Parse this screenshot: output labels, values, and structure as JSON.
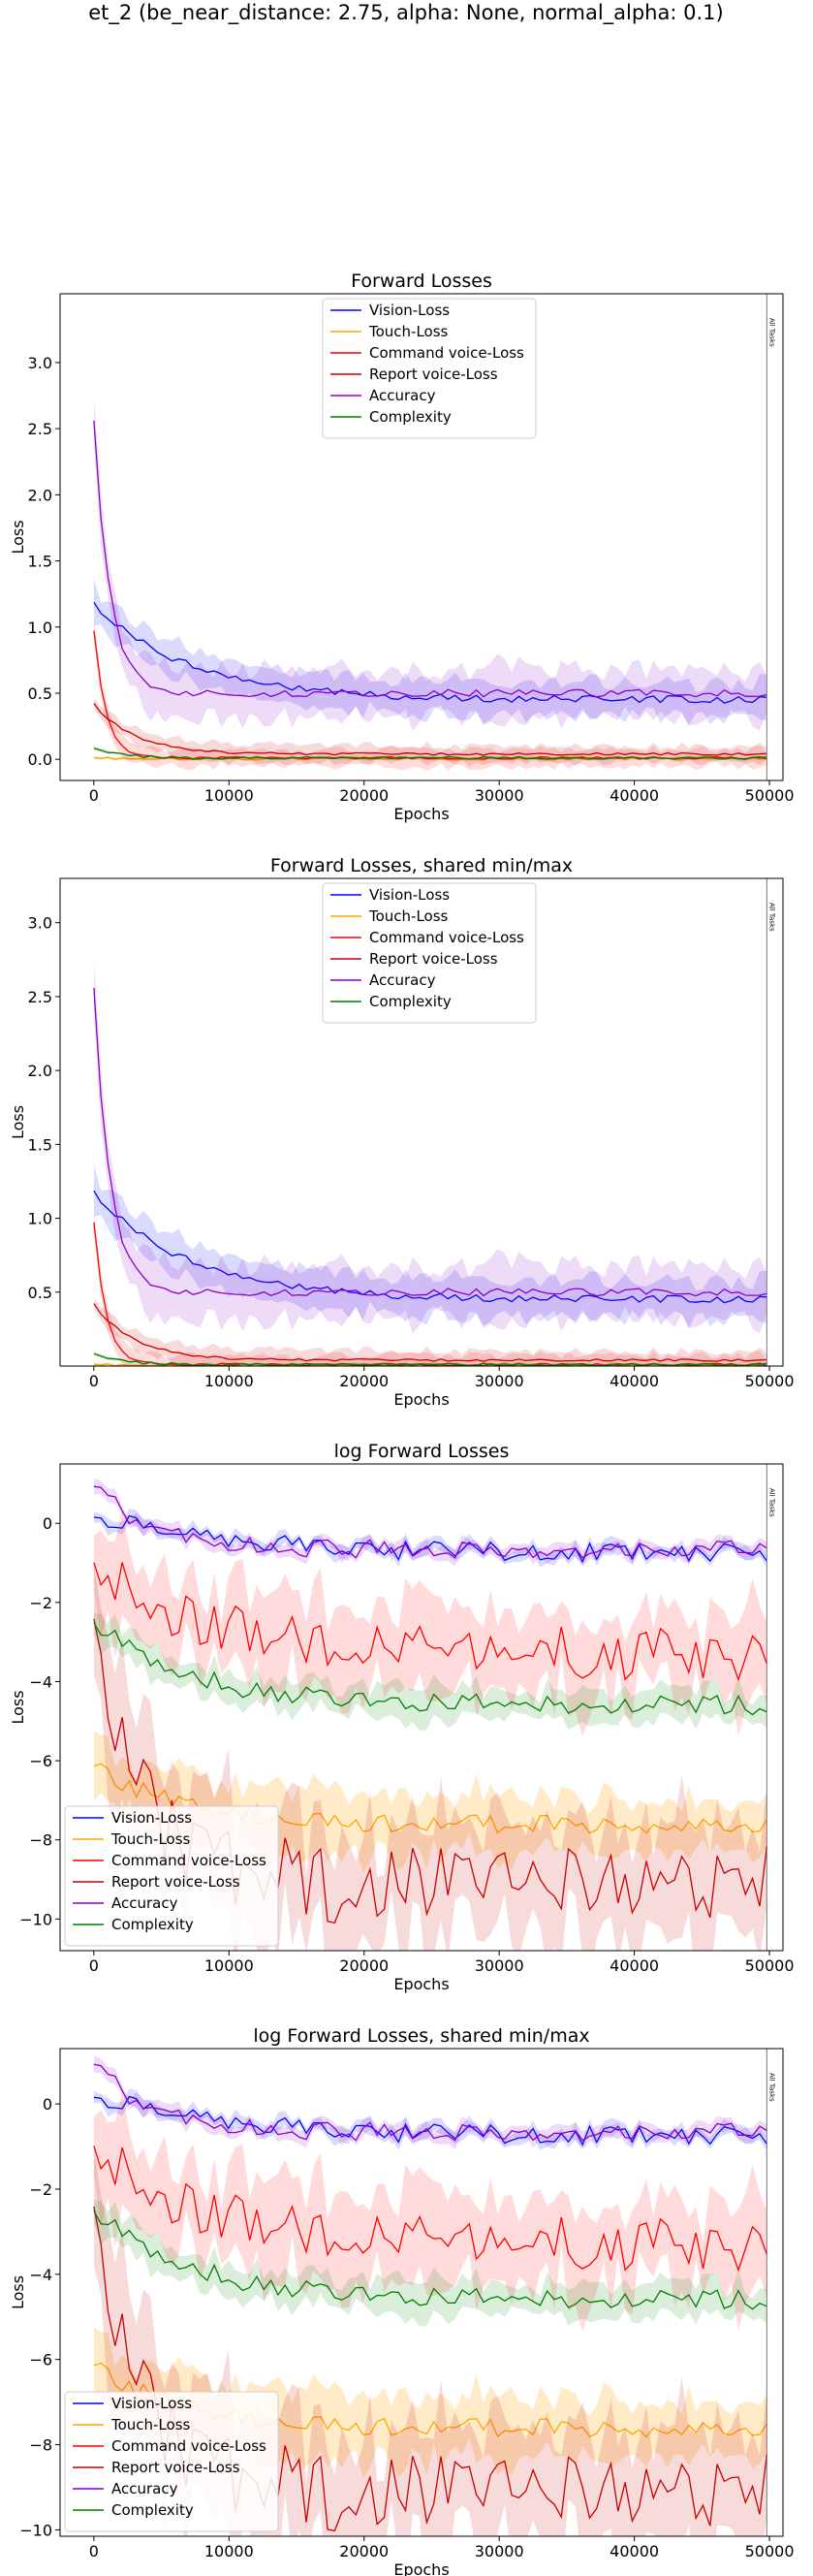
{
  "figure_title": "et_2 (be_near_distance: 2.75, alpha: None, normal_alpha: 0.1)",
  "colors": {
    "vision": "#0000ff",
    "touch": "#ffa500",
    "command": "#ff0000",
    "report": "#c80000",
    "accuracy": "#8a00c8",
    "complexity": "#008000"
  },
  "chart_data": [
    {
      "type": "line",
      "title": "Forward Losses",
      "xlabel": "Epochs",
      "ylabel": "Loss",
      "xlim": [
        -2500,
        51000
      ],
      "ylim": [
        -0.16,
        3.52
      ],
      "xticks": [
        "0",
        "10000",
        "20000",
        "30000",
        "40000",
        "50000"
      ],
      "yticks": [
        "0.0",
        "0.5",
        "1.0",
        "1.5",
        "2.0",
        "2.5",
        "3.0"
      ],
      "grid": false,
      "legend": "upper center",
      "vline_label": "All Tasks",
      "vline_x": 49800,
      "series": [
        {
          "name": "Vision-Loss",
          "start": 1.18,
          "end": 0.45,
          "decay": 7000
        },
        {
          "name": "Touch-Loss",
          "start": 0.01,
          "end": 0.005,
          "decay": 3000
        },
        {
          "name": "Command voice-Loss",
          "start": 0.97,
          "end": 0.01,
          "decay": 900
        },
        {
          "name": "Report voice-Loss",
          "start": 0.42,
          "end": 0.04,
          "decay": 3000
        },
        {
          "name": "Accuracy",
          "start": 2.55,
          "end": 0.5,
          "decay": 1200
        },
        {
          "name": "Complexity",
          "start": 0.08,
          "end": 0.01,
          "decay": 2000
        }
      ]
    },
    {
      "type": "line",
      "title": "Forward Losses, shared min/max",
      "xlabel": "Epochs",
      "ylabel": "Loss",
      "xlim": [
        -2500,
        51000
      ],
      "ylim": [
        0.0,
        3.3
      ],
      "xticks": [
        "0",
        "10000",
        "20000",
        "30000",
        "40000",
        "50000"
      ],
      "yticks": [
        "0.5",
        "1.0",
        "1.5",
        "2.0",
        "2.5",
        "3.0"
      ],
      "grid": false,
      "legend": "upper center",
      "vline_label": "All Tasks",
      "vline_x": 49800,
      "series": [
        {
          "name": "Vision-Loss",
          "start": 1.18,
          "end": 0.45,
          "decay": 7000
        },
        {
          "name": "Touch-Loss",
          "start": 0.01,
          "end": 0.005,
          "decay": 3000
        },
        {
          "name": "Command voice-Loss",
          "start": 0.97,
          "end": 0.01,
          "decay": 900
        },
        {
          "name": "Report voice-Loss",
          "start": 0.42,
          "end": 0.04,
          "decay": 3000
        },
        {
          "name": "Accuracy",
          "start": 2.55,
          "end": 0.5,
          "decay": 1200
        },
        {
          "name": "Complexity",
          "start": 0.08,
          "end": 0.01,
          "decay": 2000
        }
      ]
    },
    {
      "type": "line",
      "title": "log Forward Losses",
      "xlabel": "Epochs",
      "ylabel": "Loss",
      "xlim": [
        -2500,
        51000
      ],
      "ylim": [
        -10.8,
        1.5
      ],
      "xticks": [
        "0",
        "10000",
        "20000",
        "30000",
        "40000",
        "50000"
      ],
      "yticks": [
        "-10",
        "-8",
        "-6",
        "-4",
        "-2",
        "0"
      ],
      "grid": false,
      "legend": "lower left",
      "vline_label": "All Tasks",
      "vline_x": 49800,
      "series": [
        {
          "name": "Vision-Loss",
          "start": 0.2,
          "end": -0.75,
          "decay": 9000
        },
        {
          "name": "Touch-Loss",
          "start": -6.1,
          "end": -7.6,
          "decay": 6000
        },
        {
          "name": "Command voice-Loss",
          "start": -0.9,
          "end": -3.3,
          "decay": 7000
        },
        {
          "name": "Report voice-Loss",
          "start": -2.3,
          "end": -9.1,
          "decay": 3500
        },
        {
          "name": "Accuracy",
          "start": 0.95,
          "end": -0.65,
          "decay": 4000
        },
        {
          "name": "Complexity",
          "start": -2.5,
          "end": -4.6,
          "decay": 7000
        }
      ]
    },
    {
      "type": "line",
      "title": "log Forward Losses, shared min/max",
      "xlabel": "Epochs",
      "ylabel": "Loss",
      "xlim": [
        -2500,
        51000
      ],
      "ylim": [
        -10.15,
        1.3
      ],
      "xticks": [
        "0",
        "10000",
        "20000",
        "30000",
        "40000",
        "50000"
      ],
      "yticks": [
        "-10",
        "-8",
        "-6",
        "-4",
        "-2",
        "0"
      ],
      "grid": false,
      "legend": "lower left",
      "vline_label": "All Tasks",
      "vline_x": 49800,
      "series": [
        {
          "name": "Vision-Loss",
          "start": 0.2,
          "end": -0.75,
          "decay": 9000
        },
        {
          "name": "Touch-Loss",
          "start": -6.1,
          "end": -7.6,
          "decay": 6000
        },
        {
          "name": "Command voice-Loss",
          "start": -0.9,
          "end": -3.3,
          "decay": 7000
        },
        {
          "name": "Report voice-Loss",
          "start": -2.3,
          "end": -9.1,
          "decay": 3500
        },
        {
          "name": "Accuracy",
          "start": 0.95,
          "end": -0.65,
          "decay": 4000
        },
        {
          "name": "Complexity",
          "start": -2.5,
          "end": -4.6,
          "decay": 7000
        }
      ]
    }
  ]
}
